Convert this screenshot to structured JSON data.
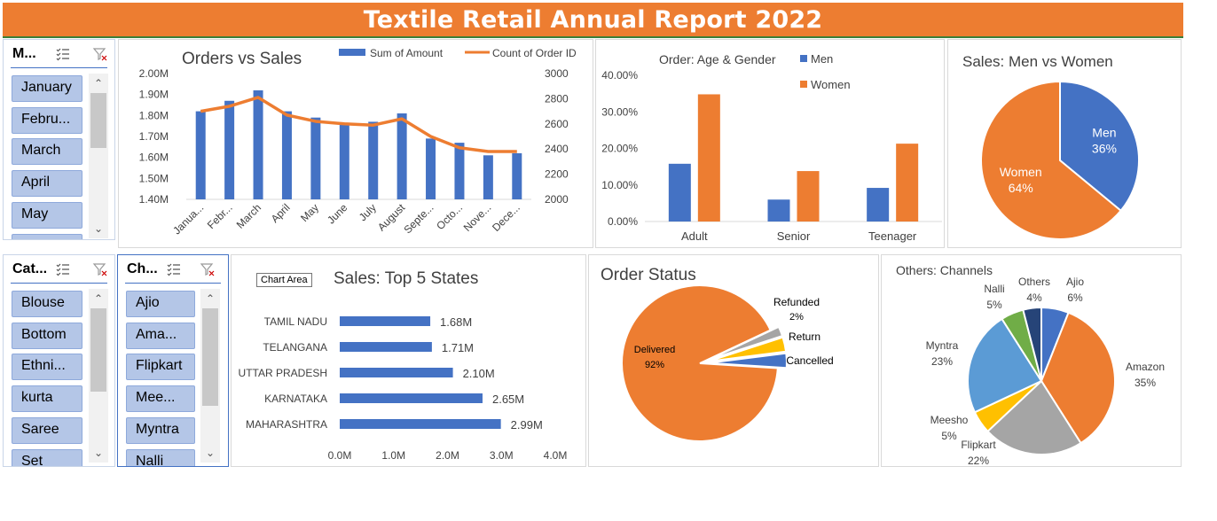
{
  "header": {
    "title": "Textile Retail Annual Report 2022"
  },
  "month_slicer": {
    "title": "M...",
    "items": [
      "January",
      "Febru...",
      "March",
      "April",
      "May",
      ""
    ]
  },
  "category_slicer": {
    "title": "Cat...",
    "items": [
      "Blouse",
      "Bottom",
      "Ethni...",
      "kurta",
      "Saree",
      "Set"
    ]
  },
  "channel_slicer": {
    "title": "Ch...",
    "items": [
      "Ajio",
      "Ama...",
      "Flipkart",
      "Mee...",
      "Myntra",
      "Nalli"
    ]
  },
  "tooltip": {
    "text": "Chart Area"
  },
  "colors": {
    "blue": "#4472C4",
    "orange": "#ED7D31",
    "gray": "#A5A5A5",
    "yellow": "#FFC000",
    "lightblue": "#5B9BD5",
    "green": "#70AD47",
    "navy": "#264478"
  },
  "chart_data": [
    {
      "id": "orders_vs_sales",
      "type": "bar",
      "title": "Orders vs Sales",
      "categories": [
        "Janua...",
        "Febr...",
        "March",
        "April",
        "May",
        "June",
        "July",
        "August",
        "Septe...",
        "Octo...",
        "Nove...",
        "Dece..."
      ],
      "series": [
        {
          "name": "Sum of Amount",
          "kind": "bar",
          "axis": "left",
          "values": [
            1.82,
            1.87,
            1.92,
            1.82,
            1.79,
            1.76,
            1.77,
            1.81,
            1.69,
            1.67,
            1.61,
            1.62
          ]
        },
        {
          "name": "Count of Order ID",
          "kind": "line",
          "axis": "right",
          "values": [
            2700,
            2740,
            2810,
            2670,
            2620,
            2600,
            2590,
            2640,
            2500,
            2410,
            2380,
            2380
          ]
        }
      ],
      "left_ticks": [
        "2.00M",
        "1.90M",
        "1.80M",
        "1.70M",
        "1.60M",
        "1.50M",
        "1.40M"
      ],
      "right_ticks": [
        "3000",
        "2800",
        "2600",
        "2400",
        "2200",
        "2000"
      ],
      "ylim_left": [
        1.4,
        2.0
      ],
      "ylim_right": [
        2000,
        3000
      ]
    },
    {
      "id": "age_gender",
      "type": "bar",
      "title": "Order: Age & Gender",
      "categories": [
        "Adult",
        "Senior",
        "Teenager"
      ],
      "series": [
        {
          "name": "Men",
          "values": [
            15.8,
            6.0,
            9.2
          ]
        },
        {
          "name": "Women",
          "values": [
            34.8,
            13.8,
            21.3
          ]
        }
      ],
      "ticks": [
        "40.00%",
        "30.00%",
        "20.00%",
        "10.00%",
        "0.00%"
      ],
      "ylim": [
        0,
        40
      ]
    },
    {
      "id": "men_vs_women",
      "type": "pie",
      "title": "Sales: Men vs Women",
      "labels": [
        "Men",
        "Women"
      ],
      "values": [
        36,
        64
      ],
      "value_labels": [
        "36%",
        "64%"
      ]
    },
    {
      "id": "top5_states",
      "type": "bar",
      "orientation": "horizontal",
      "title": "Sales: Top 5 States",
      "categories": [
        "TAMIL NADU",
        "TELANGANA",
        "UTTAR PRADESH",
        "KARNATAKA",
        "MAHARASHTRA"
      ],
      "values": [
        1.68,
        1.71,
        2.1,
        2.65,
        2.99
      ],
      "value_labels": [
        "1.68M",
        "1.71M",
        "2.10M",
        "2.65M",
        "2.99M"
      ],
      "ticks": [
        "0.0M",
        "1.0M",
        "2.0M",
        "3.0M",
        "4.0M"
      ],
      "xlim": [
        0,
        4
      ]
    },
    {
      "id": "order_status",
      "type": "pie",
      "title": "Order Status",
      "labels": [
        "Delivered",
        "Refunded",
        "Return",
        "Cancelled"
      ],
      "values": [
        92,
        2,
        3,
        3
      ],
      "value_labels": [
        "92%",
        "2%",
        "",
        ""
      ]
    },
    {
      "id": "other_channels",
      "type": "pie",
      "title": "Others: Channels",
      "labels": [
        "Ajio",
        "Amazon",
        "Flipkart",
        "Meesho",
        "Myntra",
        "Nalli",
        "Others"
      ],
      "values": [
        6,
        35,
        22,
        5,
        23,
        5,
        4
      ],
      "value_labels": [
        "6%",
        "35%",
        "22%",
        "5%",
        "23%",
        "5%",
        "4%"
      ]
    }
  ]
}
